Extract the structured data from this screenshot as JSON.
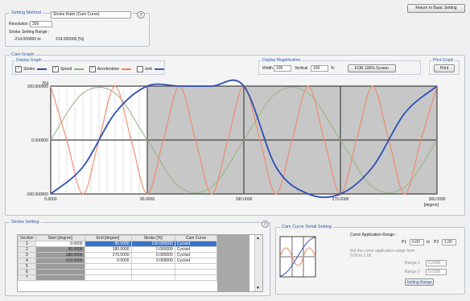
{
  "return_button": "Return to Basic Setting",
  "setting_method": {
    "title": "Setting Method",
    "value": "Stroke Ratio (Cam Curve)",
    "resolution_label": "Resolution :",
    "resolution_value": "256",
    "stroke_range_label": "Stroke Setting Range :",
    "stroke_range_min": "-214.000000 to",
    "stroke_range_max": "214.000000 [%]"
  },
  "cam_graph": {
    "title": "Cam Graph",
    "display_graph_label": "Display Graph",
    "legend": [
      {
        "label": "Stroke",
        "checked": true,
        "color": "#2f4fb5"
      },
      {
        "label": "Speed",
        "checked": true,
        "color": "#8fae7a"
      },
      {
        "label": "Acceleration",
        "checked": true,
        "color": "#f08060"
      },
      {
        "label": "Jerk",
        "checked": false,
        "color": "#4060c0"
      }
    ],
    "magnification_label": "Display Magnification",
    "width_label": "Width",
    "width_value": "100",
    "vertical_label": "Vertical",
    "vertical_value": "100",
    "percent_unit": "%",
    "fit_button": "FOR 100% Screen",
    "print_label": "Print Graph",
    "print_button": "Print"
  },
  "chart_data": {
    "type": "line",
    "ylabel_unit": "[%]",
    "y_ticks": [
      "100.000000",
      "0.000000",
      "-100.000000"
    ],
    "x_ticks": [
      "0.0000",
      "90.0000",
      "180.0000",
      "270.0000",
      "360.0000"
    ],
    "x_unit": "[degree]",
    "xlim": [
      0,
      360
    ],
    "ylim": [
      -100,
      100
    ],
    "edit_region_degree": [
      0,
      90
    ],
    "series": [
      {
        "key": "stroke",
        "color": "#2f4fb5",
        "x": [
          0,
          30,
          60,
          90,
          120,
          150,
          180,
          210,
          240,
          270,
          300,
          330,
          360
        ],
        "y": [
          -100,
          -50,
          50,
          100,
          100,
          100,
          100,
          -50,
          -100,
          -100,
          -50,
          50,
          100
        ]
      },
      {
        "key": "speed",
        "color": "#9db58a",
        "x": [
          0,
          30,
          60,
          90,
          120,
          150,
          180,
          210,
          240,
          270,
          300,
          330,
          360
        ],
        "y": [
          0,
          87,
          87,
          0,
          -87,
          -87,
          0,
          87,
          87,
          0,
          -87,
          -87,
          0
        ]
      },
      {
        "key": "acceleration",
        "color": "#f08868",
        "x": [
          0,
          15,
          30,
          45,
          60,
          75,
          90,
          105,
          120,
          135,
          150,
          165,
          180,
          195,
          210,
          225,
          240,
          255,
          270,
          285,
          300,
          315,
          330,
          345,
          360
        ],
        "y": [
          100,
          0,
          -100,
          0,
          100,
          0,
          -100,
          0,
          100,
          0,
          -100,
          0,
          100,
          0,
          -100,
          0,
          100,
          0,
          -100,
          0,
          100,
          0,
          -100,
          0,
          100
        ]
      }
    ]
  },
  "stroke_setting": {
    "title": "Stroke Setting",
    "columns": [
      "Section",
      "Start [degree]",
      "End [degree]",
      "Stroke [%]",
      "Cam Curve"
    ],
    "rows": [
      [
        "1",
        "0.0000",
        "90.0000",
        "100.000000",
        "Cycloid"
      ],
      [
        "2",
        "90.0000",
        "180.0000",
        "0.000000",
        "Cycloid"
      ],
      [
        "3",
        "180.0000",
        "270.0000",
        "0.000000",
        "Cycloid"
      ],
      [
        "4",
        "270.0000",
        "0.0000",
        "0.000000",
        "Cycloid"
      ],
      [
        "5",
        "",
        "",
        "",
        ""
      ],
      [
        "6",
        "",
        "",
        "",
        ""
      ],
      [
        "7",
        "",
        "",
        "",
        ""
      ]
    ]
  },
  "cam_curve_detail": {
    "title": "Cam Curve Detail Setting",
    "range_label": "Curve Application Range :",
    "p1_label": "P1",
    "p1_value": "0.00",
    "to": "to",
    "p2_label": "P2",
    "p2_value": "1.00",
    "note": "Set the curve application range from 0.00 to 1.00",
    "range1_label": "Range 1",
    "range1_value": "0.0000",
    "range2_label": "Range 2",
    "range2_value": "0.0000",
    "setting_range_button": "Setting Range"
  }
}
